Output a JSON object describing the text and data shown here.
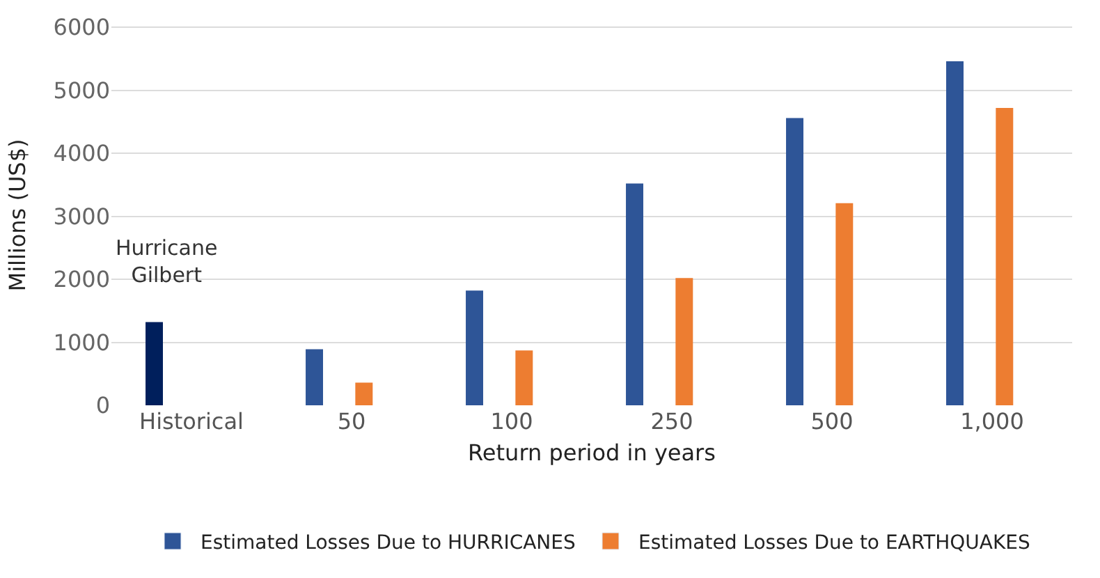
{
  "chart_data": {
    "type": "bar",
    "xlabel": "Return period in years",
    "ylabel": "Millions (US$)",
    "categories": [
      "Historical",
      "50",
      "100",
      "250",
      "500",
      "1,000"
    ],
    "series": [
      {
        "name": "Estimated Losses Due to HURRICANES",
        "color": "#2e5597",
        "colors": [
          "#001f5c",
          "#2e5597",
          "#2e5597",
          "#2e5597",
          "#2e5597",
          "#2e5597"
        ],
        "values": [
          1320,
          890,
          1820,
          3520,
          4560,
          5460
        ]
      },
      {
        "name": "Estimated Losses Due to EARTHQUAKES",
        "color": "#ed7d31",
        "values": [
          null,
          360,
          870,
          2020,
          3210,
          4720
        ]
      }
    ],
    "ylim": [
      0,
      6000
    ],
    "yticks": [
      0,
      1000,
      2000,
      3000,
      4000,
      5000,
      6000
    ],
    "grid": "y",
    "legend": "bottom",
    "annotations": [
      "Hurricane\nGilbert"
    ]
  }
}
